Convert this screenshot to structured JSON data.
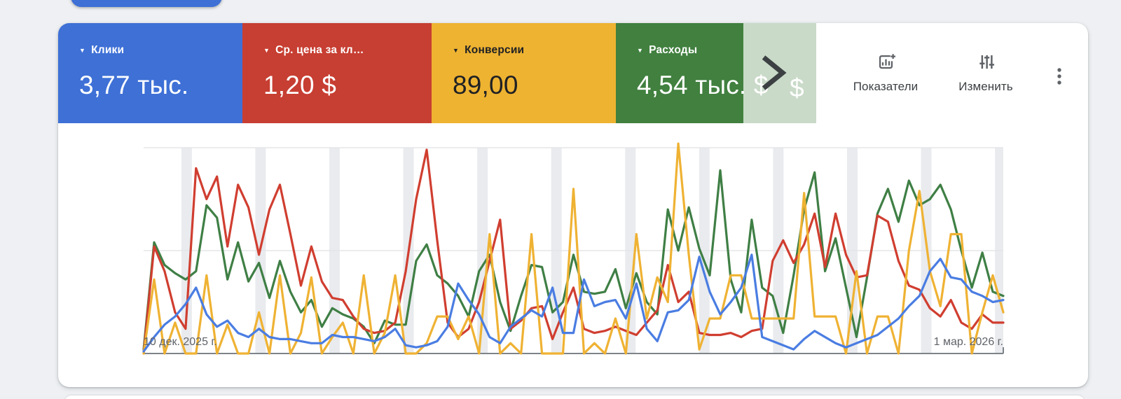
{
  "page": {
    "background": "#eef0f3",
    "gridline_color": "#e3e5e8",
    "band_color": "#e9ebee",
    "axis_color": "#7d8389"
  },
  "top_pill": {
    "color": "#3e70d6"
  },
  "metrics": [
    {
      "id": "clicks",
      "label": "Клики",
      "value": "3,77 тыс.",
      "color": "#3e70d6",
      "text_color": "#ffffff"
    },
    {
      "id": "avg_cpc",
      "label": "Ср. цена за кл…",
      "value": "1,20 $",
      "color": "#c73e32",
      "text_color": "#ffffff"
    },
    {
      "id": "conversions",
      "label": "Конверсии",
      "value": "89,00",
      "color": "#eeb331",
      "text_color": "#202124"
    },
    {
      "id": "cost",
      "label": "Расходы",
      "value": "4,54 тыс. $",
      "color": "#41803f",
      "text_color": "#ffffff"
    }
  ],
  "next_metric_card": {
    "visible_value": "$",
    "color": "#c9dac8"
  },
  "carousel": {
    "chevron_color": "#3c4043"
  },
  "toolbar": {
    "metrics_button": "Показатели",
    "edit_button": "Изменить",
    "icon_color": "#5f6368"
  },
  "chart_data": {
    "type": "line",
    "title": "",
    "x_axis": {
      "start_label": "10 дек. 2025 г.",
      "end_label": "1 мар. 2026 г.",
      "points": 83,
      "unit": "day"
    },
    "y_axis": {
      "unit": "percent of plot height",
      "range": [
        0,
        102
      ],
      "gridlines_at": [
        50,
        100
      ]
    },
    "weekend_bands": {
      "first_center_day": 4.1,
      "interval_days": 7.055,
      "width_days": 1,
      "count": 12
    },
    "legend_position": "none",
    "series": [
      {
        "name": "Расходы",
        "color": "#3f7f45",
        "values": [
          2,
          54,
          43,
          39,
          36,
          40,
          72,
          66,
          36,
          54,
          35,
          44,
          27,
          45,
          30,
          20,
          26,
          13,
          22,
          19,
          17,
          13,
          5,
          16,
          14,
          14,
          45,
          53,
          38,
          34,
          28,
          18,
          40,
          48,
          25,
          11,
          28,
          43,
          42,
          20,
          25,
          48,
          30,
          29,
          30,
          41,
          22,
          39,
          25,
          19,
          70,
          50,
          71,
          51,
          38,
          89,
          36,
          20,
          65,
          32,
          28,
          10,
          38,
          70,
          88,
          40,
          56,
          32,
          8,
          37,
          68,
          80,
          64,
          84,
          72,
          75,
          82,
          70,
          50,
          32,
          49,
          30,
          28
        ]
      },
      {
        "name": "Ср. цена за клик",
        "color": "#d03e30",
        "values": [
          0,
          52,
          40,
          20,
          12,
          90,
          75,
          86,
          52,
          82,
          71,
          48,
          70,
          82,
          58,
          33,
          52,
          35,
          27,
          26,
          18,
          12,
          10,
          11,
          15,
          40,
          75,
          99,
          55,
          15,
          8,
          12,
          25,
          45,
          65,
          12,
          16,
          22,
          23,
          7,
          20,
          32,
          12,
          10,
          11,
          13,
          11,
          9,
          15,
          21,
          43,
          25,
          30,
          10,
          9,
          9,
          10,
          8,
          11,
          12,
          45,
          55,
          44,
          53,
          68,
          42,
          68,
          48,
          37,
          38,
          67,
          64,
          45,
          33,
          31,
          22,
          18,
          26,
          15,
          12,
          19,
          15,
          15
        ]
      },
      {
        "name": "Конверсии",
        "color": "#efb233",
        "values": [
          0,
          36,
          0,
          15,
          0,
          0,
          38,
          0,
          14,
          0,
          0,
          20,
          0,
          38,
          0,
          10,
          37,
          0,
          8,
          15,
          0,
          38,
          0,
          10,
          38,
          0,
          0,
          5,
          18,
          18,
          7,
          18,
          0,
          58,
          0,
          5,
          0,
          58,
          0,
          0,
          0,
          80,
          0,
          5,
          0,
          17,
          0,
          58,
          17,
          37,
          25,
          102,
          48,
          2,
          17,
          17,
          38,
          38,
          17,
          17,
          17,
          17,
          17,
          78,
          18,
          18,
          18,
          0,
          40,
          0,
          18,
          18,
          0,
          50,
          79,
          40,
          23,
          58,
          58,
          0,
          20,
          38,
          20
        ]
      },
      {
        "name": "Клики",
        "color": "#4a7de2",
        "values": [
          1,
          8,
          14,
          18,
          24,
          32,
          19,
          13,
          16,
          10,
          8,
          12,
          8,
          7,
          7,
          6,
          5,
          5,
          9,
          8,
          8,
          7,
          6,
          8,
          12,
          4,
          3,
          4,
          6,
          13,
          34,
          26,
          19,
          8,
          5,
          13,
          17,
          21,
          18,
          32,
          10,
          10,
          36,
          23,
          25,
          26,
          17,
          34,
          12,
          6,
          20,
          21,
          26,
          47,
          30,
          19,
          25,
          32,
          48,
          8,
          6,
          4,
          2,
          7,
          11,
          8,
          5,
          3,
          5,
          7,
          9,
          13,
          17,
          23,
          28,
          40,
          46,
          37,
          36,
          30,
          28,
          25,
          26
        ]
      }
    ]
  }
}
